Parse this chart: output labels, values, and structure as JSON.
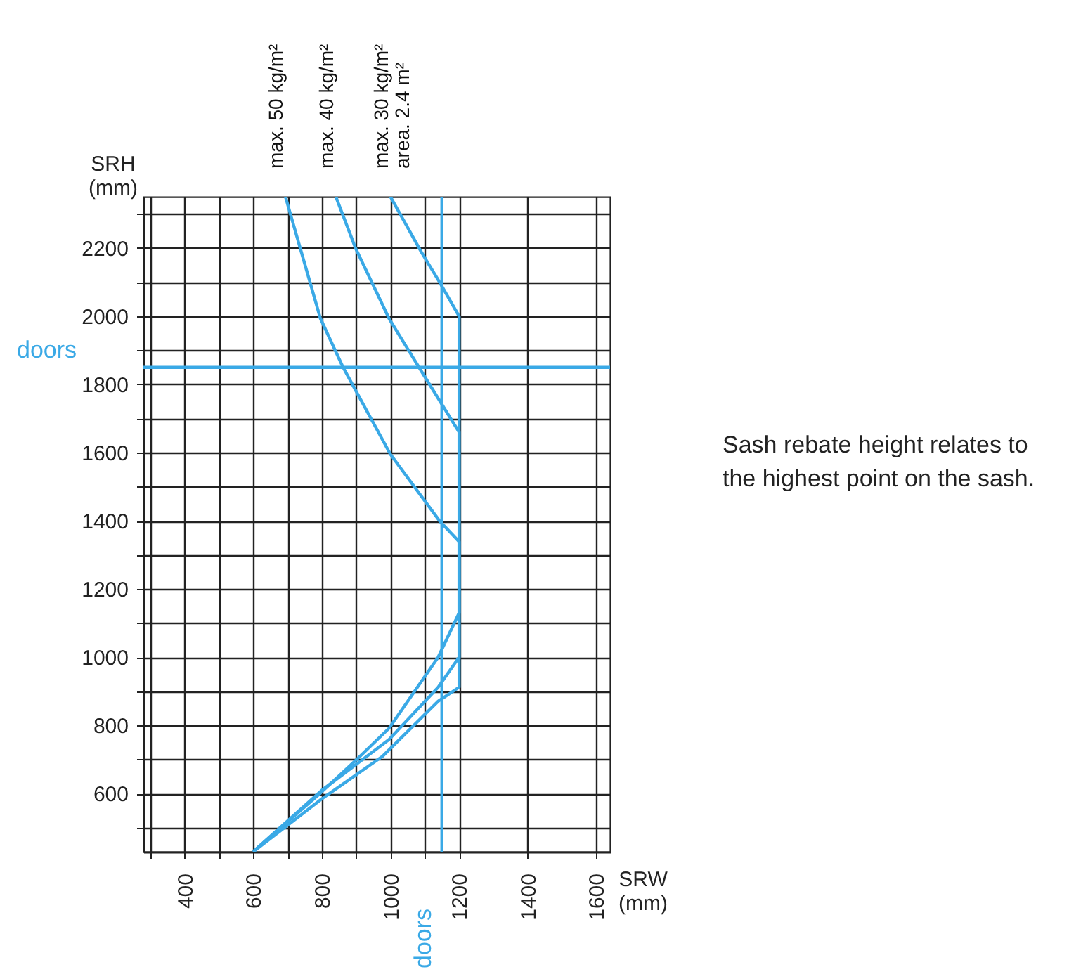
{
  "chart_data": {
    "type": "line",
    "xlabel": "SRW (mm)",
    "ylabel": "SRH (mm)",
    "series": [
      {
        "name": "max. 50 kg/m²",
        "color": "#3aa9e6",
        "x": [
          694,
          796,
          861,
          1000,
          1143,
          1200,
          1200,
          1139,
          996,
          898,
          796,
          600
        ],
        "values": [
          2350,
          1993,
          1852,
          1595,
          1400,
          1339,
          1130,
          1000,
          792,
          697,
          602,
          430
        ]
      },
      {
        "name": "max. 40 kg/m²",
        "color": "#3aa9e6",
        "x": [
          841,
          898,
          996,
          1082,
          1200,
          1200,
          1139,
          996,
          800,
          600
        ],
        "values": [
          2350,
          2200,
          1993,
          1852,
          1660,
          1000,
          912,
          759,
          610,
          430
        ]
      },
      {
        "name": "max. 30 kg/m²",
        "color": "#3aa9e6",
        "x": [
          1000,
          1090,
          1143,
          1200,
          1200,
          1139,
          976,
          800,
          600
        ],
        "values": [
          2350,
          2188,
          2100,
          2000,
          912,
          871,
          709,
          585,
          430
        ]
      }
    ],
    "xlim": [
      280,
      1640
    ],
    "ylim": [
      430,
      2350
    ],
    "xticks": [
      {
        "value": 300,
        "label": null
      },
      400,
      {
        "value": 500,
        "label": null
      },
      600,
      {
        "value": 700,
        "label": null
      },
      800,
      {
        "value": 900,
        "label": null
      },
      1000,
      {
        "value": 1100,
        "label": null
      },
      1200,
      1400,
      1600
    ],
    "yticks": [
      {
        "value": 500,
        "label": null
      },
      600,
      {
        "value": 700,
        "label": null
      },
      800,
      {
        "value": 900,
        "label": null
      },
      1000,
      {
        "value": 1100,
        "label": null
      },
      1200,
      {
        "value": 1300,
        "label": null
      },
      1400,
      {
        "value": 1500,
        "label": null
      },
      1600,
      {
        "value": 1700,
        "label": null
      },
      1800,
      {
        "value": 1900,
        "label": null
      },
      2000,
      {
        "value": 2100,
        "label": null
      },
      2200,
      {
        "value": 2300,
        "label": null
      }
    ],
    "grid": true,
    "ref_lines": [
      {
        "axis": "y",
        "value": 1850,
        "label": "doors",
        "color": "#3aa9e6"
      },
      {
        "axis": "x",
        "value": 1150,
        "label": "doors",
        "color": "#3aa9e6"
      }
    ],
    "annotations": [
      "area. 2.4 m²",
      "Sash rebate height relates to the highest point on the sash."
    ]
  }
}
